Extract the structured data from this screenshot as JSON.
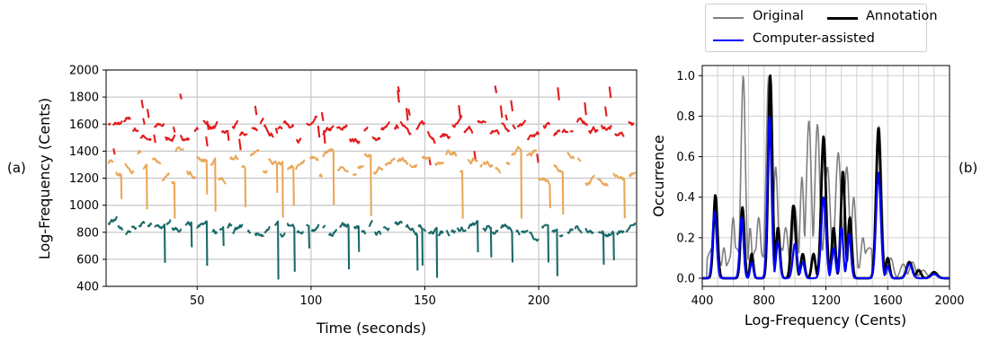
{
  "panel_labels": {
    "a": "(a)",
    "b": "(b)"
  },
  "legend": {
    "entries": [
      {
        "label": "Original",
        "color": "#7f7f7f"
      },
      {
        "label": "Annotation",
        "color": "#000000"
      },
      {
        "label": "Computer-assisted",
        "color": "#0000ff"
      }
    ]
  },
  "chart_data": [
    {
      "panel": "(a)",
      "type": "scatter",
      "title": "",
      "xlabel": "Time (seconds)",
      "ylabel": "Log-Frequency (Cents)",
      "xlim": [
        10,
        243
      ],
      "ylim": [
        400,
        2000
      ],
      "xticks": [
        50,
        100,
        150,
        200
      ],
      "yticks": [
        400,
        600,
        800,
        1000,
        1200,
        1400,
        1600,
        1800,
        2000
      ],
      "grid": true,
      "colors": {
        "upper": "#e31a1c",
        "middle": "#eaa657",
        "lower": "#1a6a6a"
      },
      "series": [
        {
          "band": "upper",
          "band_center": 1560,
          "band_spread": 60,
          "burst_count": 32,
          "burst_range": [
            1350,
            1920
          ]
        },
        {
          "band": "middle",
          "band_center": 1280,
          "band_spread": 110,
          "drop_range": [
            900,
            1100
          ]
        },
        {
          "band": "lower",
          "band_center": 820,
          "band_spread": 40,
          "drop_range": [
            420,
            700
          ]
        }
      ]
    },
    {
      "panel": "(b)",
      "type": "line",
      "title": "",
      "xlabel": "Log-Frequency (Cents)",
      "ylabel": "Occurrence",
      "xlim": [
        400,
        2000
      ],
      "ylim": [
        -0.04,
        1.05
      ],
      "xticks": [
        400,
        800,
        1200,
        1600,
        2000
      ],
      "yticks": [
        0.0,
        0.2,
        0.4,
        0.6,
        0.8,
        1.0
      ],
      "grid": true,
      "legend_position": "above",
      "series": [
        {
          "name": "Original",
          "color": "#7f7f7f",
          "peaks": [
            [
              480,
              0.3,
              14
            ],
            [
              540,
              0.15,
              12
            ],
            [
              600,
              0.3,
              12
            ],
            [
              665,
              1.0,
              14
            ],
            [
              710,
              0.25,
              10
            ],
            [
              765,
              0.3,
              14
            ],
            [
              830,
              1.0,
              16
            ],
            [
              875,
              0.55,
              14
            ],
            [
              940,
              0.25,
              16
            ],
            [
              1000,
              0.35,
              16
            ],
            [
              1045,
              0.5,
              12
            ],
            [
              1090,
              0.78,
              16
            ],
            [
              1145,
              0.76,
              16
            ],
            [
              1210,
              0.55,
              18
            ],
            [
              1280,
              0.62,
              18
            ],
            [
              1335,
              0.55,
              16
            ],
            [
              1380,
              0.4,
              14
            ],
            [
              1440,
              0.2,
              14
            ],
            [
              1545,
              0.75,
              16
            ],
            [
              1620,
              0.1,
              16
            ],
            [
              1700,
              0.07,
              18
            ],
            [
              1760,
              0.08,
              18
            ],
            [
              1830,
              0.04,
              20
            ],
            [
              1900,
              0.03,
              20
            ]
          ],
          "baseline": 0.1
        },
        {
          "name": "Annotation",
          "color": "#000000",
          "peaks": [
            [
              485,
              0.41,
              13
            ],
            [
              660,
              0.35,
              12
            ],
            [
              720,
              0.12,
              10
            ],
            [
              840,
              1.0,
              13
            ],
            [
              890,
              0.25,
              12
            ],
            [
              990,
              0.36,
              14
            ],
            [
              1050,
              0.12,
              12
            ],
            [
              1120,
              0.12,
              12
            ],
            [
              1185,
              0.7,
              15
            ],
            [
              1250,
              0.25,
              12
            ],
            [
              1310,
              0.53,
              13
            ],
            [
              1355,
              0.3,
              12
            ],
            [
              1540,
              0.74,
              15
            ],
            [
              1600,
              0.1,
              12
            ],
            [
              1740,
              0.08,
              18
            ],
            [
              1800,
              0.04,
              15
            ],
            [
              1900,
              0.03,
              20
            ]
          ],
          "baseline": 0.0
        },
        {
          "name": "Computer-assisted",
          "color": "#0000ff",
          "peaks": [
            [
              480,
              0.33,
              13
            ],
            [
              655,
              0.3,
              12
            ],
            [
              720,
              0.08,
              10
            ],
            [
              835,
              0.8,
              13
            ],
            [
              890,
              0.18,
              12
            ],
            [
              1000,
              0.17,
              14
            ],
            [
              1050,
              0.08,
              12
            ],
            [
              1185,
              0.4,
              15
            ],
            [
              1250,
              0.15,
              12
            ],
            [
              1300,
              0.25,
              12
            ],
            [
              1350,
              0.22,
              12
            ],
            [
              1540,
              0.52,
              15
            ],
            [
              1600,
              0.06,
              12
            ],
            [
              1740,
              0.07,
              18
            ],
            [
              1900,
              0.02,
              20
            ]
          ],
          "baseline": 0.0
        }
      ]
    }
  ]
}
